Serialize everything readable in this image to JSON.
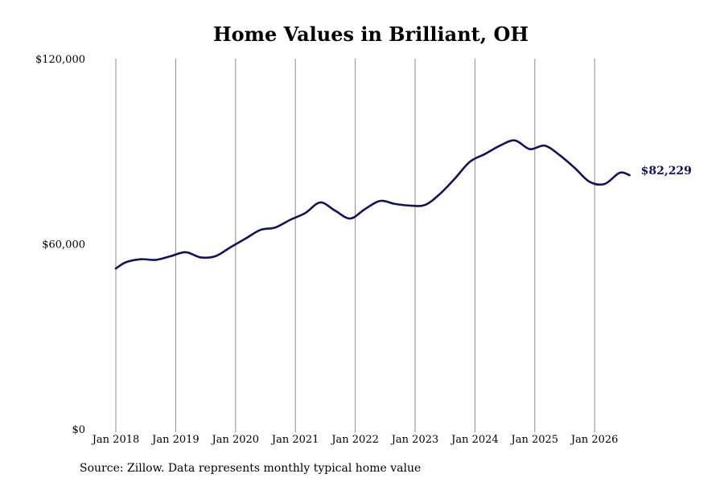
{
  "chart_data": {
    "type": "line",
    "title": "Home Values in Brilliant, OH",
    "source": "Source: Zillow. Data represents monthly typical home value",
    "ylim": [
      0,
      120000
    ],
    "y_ticks": [
      {
        "value": 0,
        "label": "$0"
      },
      {
        "value": 60000,
        "label": "$60,000"
      },
      {
        "value": 120000,
        "label": "$120,000"
      }
    ],
    "x_ticks": [
      "Jan 2018",
      "Jan 2019",
      "Jan 2020",
      "Jan 2021",
      "Jan 2022",
      "Jan 2023",
      "Jan 2024",
      "Jan 2025",
      "Jan 2026"
    ],
    "grid": "vertical",
    "line_color": "#12125e",
    "end_label": "$82,229",
    "series": [
      {
        "x": [
          "2018-01",
          "2018-03",
          "2018-06",
          "2018-09",
          "2018-12",
          "2019-03",
          "2019-06",
          "2019-09",
          "2019-12",
          "2020-03",
          "2020-06",
          "2020-09",
          "2020-12",
          "2021-03",
          "2021-06",
          "2021-09",
          "2021-12",
          "2022-03",
          "2022-06",
          "2022-09",
          "2022-12",
          "2023-03",
          "2023-06",
          "2023-09",
          "2023-12",
          "2024-03",
          "2024-06",
          "2024-09",
          "2024-12",
          "2025-03",
          "2025-06",
          "2025-09",
          "2025-12",
          "2026-03",
          "2026-06",
          "2026-08"
        ],
        "values": [
          52000,
          54000,
          55000,
          54800,
          56000,
          57300,
          55600,
          56000,
          58900,
          61700,
          64500,
          65300,
          67800,
          70000,
          73400,
          70700,
          68200,
          71300,
          73900,
          72900,
          72400,
          72600,
          76200,
          81200,
          86600,
          89100,
          91800,
          93500,
          90700,
          91800,
          88700,
          84600,
          80100,
          79400,
          83000,
          82229
        ]
      }
    ]
  }
}
